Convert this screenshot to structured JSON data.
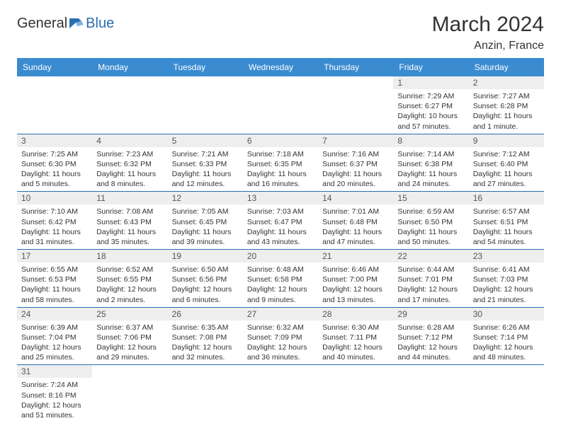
{
  "logo": {
    "text1": "General",
    "text2": "Blue"
  },
  "title": "March 2024",
  "location": "Anzin, France",
  "weekdays": [
    "Sunday",
    "Monday",
    "Tuesday",
    "Wednesday",
    "Thursday",
    "Friday",
    "Saturday"
  ],
  "colors": {
    "header_bg": "#3a8bd0",
    "header_text": "#ffffff",
    "daynum_bg": "#eeeeee",
    "rule": "#2a6db3",
    "logo_accent": "#2a6db3"
  },
  "font": {
    "family": "Arial",
    "title_size": 30,
    "location_size": 16,
    "header_size": 12,
    "body_size": 10.5
  },
  "weeks": [
    [
      null,
      null,
      null,
      null,
      null,
      {
        "n": "1",
        "sunrise": "Sunrise: 7:29 AM",
        "sunset": "Sunset: 6:27 PM",
        "daylight": "Daylight: 10 hours and 57 minutes."
      },
      {
        "n": "2",
        "sunrise": "Sunrise: 7:27 AM",
        "sunset": "Sunset: 6:28 PM",
        "daylight": "Daylight: 11 hours and 1 minute."
      }
    ],
    [
      {
        "n": "3",
        "sunrise": "Sunrise: 7:25 AM",
        "sunset": "Sunset: 6:30 PM",
        "daylight": "Daylight: 11 hours and 5 minutes."
      },
      {
        "n": "4",
        "sunrise": "Sunrise: 7:23 AM",
        "sunset": "Sunset: 6:32 PM",
        "daylight": "Daylight: 11 hours and 8 minutes."
      },
      {
        "n": "5",
        "sunrise": "Sunrise: 7:21 AM",
        "sunset": "Sunset: 6:33 PM",
        "daylight": "Daylight: 11 hours and 12 minutes."
      },
      {
        "n": "6",
        "sunrise": "Sunrise: 7:18 AM",
        "sunset": "Sunset: 6:35 PM",
        "daylight": "Daylight: 11 hours and 16 minutes."
      },
      {
        "n": "7",
        "sunrise": "Sunrise: 7:16 AM",
        "sunset": "Sunset: 6:37 PM",
        "daylight": "Daylight: 11 hours and 20 minutes."
      },
      {
        "n": "8",
        "sunrise": "Sunrise: 7:14 AM",
        "sunset": "Sunset: 6:38 PM",
        "daylight": "Daylight: 11 hours and 24 minutes."
      },
      {
        "n": "9",
        "sunrise": "Sunrise: 7:12 AM",
        "sunset": "Sunset: 6:40 PM",
        "daylight": "Daylight: 11 hours and 27 minutes."
      }
    ],
    [
      {
        "n": "10",
        "sunrise": "Sunrise: 7:10 AM",
        "sunset": "Sunset: 6:42 PM",
        "daylight": "Daylight: 11 hours and 31 minutes."
      },
      {
        "n": "11",
        "sunrise": "Sunrise: 7:08 AM",
        "sunset": "Sunset: 6:43 PM",
        "daylight": "Daylight: 11 hours and 35 minutes."
      },
      {
        "n": "12",
        "sunrise": "Sunrise: 7:05 AM",
        "sunset": "Sunset: 6:45 PM",
        "daylight": "Daylight: 11 hours and 39 minutes."
      },
      {
        "n": "13",
        "sunrise": "Sunrise: 7:03 AM",
        "sunset": "Sunset: 6:47 PM",
        "daylight": "Daylight: 11 hours and 43 minutes."
      },
      {
        "n": "14",
        "sunrise": "Sunrise: 7:01 AM",
        "sunset": "Sunset: 6:48 PM",
        "daylight": "Daylight: 11 hours and 47 minutes."
      },
      {
        "n": "15",
        "sunrise": "Sunrise: 6:59 AM",
        "sunset": "Sunset: 6:50 PM",
        "daylight": "Daylight: 11 hours and 50 minutes."
      },
      {
        "n": "16",
        "sunrise": "Sunrise: 6:57 AM",
        "sunset": "Sunset: 6:51 PM",
        "daylight": "Daylight: 11 hours and 54 minutes."
      }
    ],
    [
      {
        "n": "17",
        "sunrise": "Sunrise: 6:55 AM",
        "sunset": "Sunset: 6:53 PM",
        "daylight": "Daylight: 11 hours and 58 minutes."
      },
      {
        "n": "18",
        "sunrise": "Sunrise: 6:52 AM",
        "sunset": "Sunset: 6:55 PM",
        "daylight": "Daylight: 12 hours and 2 minutes."
      },
      {
        "n": "19",
        "sunrise": "Sunrise: 6:50 AM",
        "sunset": "Sunset: 6:56 PM",
        "daylight": "Daylight: 12 hours and 6 minutes."
      },
      {
        "n": "20",
        "sunrise": "Sunrise: 6:48 AM",
        "sunset": "Sunset: 6:58 PM",
        "daylight": "Daylight: 12 hours and 9 minutes."
      },
      {
        "n": "21",
        "sunrise": "Sunrise: 6:46 AM",
        "sunset": "Sunset: 7:00 PM",
        "daylight": "Daylight: 12 hours and 13 minutes."
      },
      {
        "n": "22",
        "sunrise": "Sunrise: 6:44 AM",
        "sunset": "Sunset: 7:01 PM",
        "daylight": "Daylight: 12 hours and 17 minutes."
      },
      {
        "n": "23",
        "sunrise": "Sunrise: 6:41 AM",
        "sunset": "Sunset: 7:03 PM",
        "daylight": "Daylight: 12 hours and 21 minutes."
      }
    ],
    [
      {
        "n": "24",
        "sunrise": "Sunrise: 6:39 AM",
        "sunset": "Sunset: 7:04 PM",
        "daylight": "Daylight: 12 hours and 25 minutes."
      },
      {
        "n": "25",
        "sunrise": "Sunrise: 6:37 AM",
        "sunset": "Sunset: 7:06 PM",
        "daylight": "Daylight: 12 hours and 29 minutes."
      },
      {
        "n": "26",
        "sunrise": "Sunrise: 6:35 AM",
        "sunset": "Sunset: 7:08 PM",
        "daylight": "Daylight: 12 hours and 32 minutes."
      },
      {
        "n": "27",
        "sunrise": "Sunrise: 6:32 AM",
        "sunset": "Sunset: 7:09 PM",
        "daylight": "Daylight: 12 hours and 36 minutes."
      },
      {
        "n": "28",
        "sunrise": "Sunrise: 6:30 AM",
        "sunset": "Sunset: 7:11 PM",
        "daylight": "Daylight: 12 hours and 40 minutes."
      },
      {
        "n": "29",
        "sunrise": "Sunrise: 6:28 AM",
        "sunset": "Sunset: 7:12 PM",
        "daylight": "Daylight: 12 hours and 44 minutes."
      },
      {
        "n": "30",
        "sunrise": "Sunrise: 6:26 AM",
        "sunset": "Sunset: 7:14 PM",
        "daylight": "Daylight: 12 hours and 48 minutes."
      }
    ],
    [
      {
        "n": "31",
        "sunrise": "Sunrise: 7:24 AM",
        "sunset": "Sunset: 8:16 PM",
        "daylight": "Daylight: 12 hours and 51 minutes."
      },
      null,
      null,
      null,
      null,
      null,
      null
    ]
  ]
}
